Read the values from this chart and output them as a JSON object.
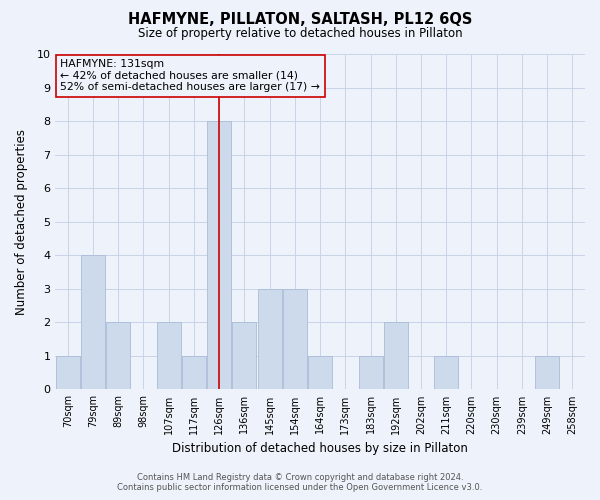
{
  "title": "HAFMYNE, PILLATON, SALTASH, PL12 6QS",
  "subtitle": "Size of property relative to detached houses in Pillaton",
  "xlabel": "Distribution of detached houses by size in Pillaton",
  "ylabel": "Number of detached properties",
  "footer_line1": "Contains HM Land Registry data © Crown copyright and database right 2024.",
  "footer_line2": "Contains public sector information licensed under the Open Government Licence v3.0.",
  "categories": [
    "70sqm",
    "79sqm",
    "89sqm",
    "98sqm",
    "107sqm",
    "117sqm",
    "126sqm",
    "136sqm",
    "145sqm",
    "154sqm",
    "164sqm",
    "173sqm",
    "183sqm",
    "192sqm",
    "202sqm",
    "211sqm",
    "220sqm",
    "230sqm",
    "239sqm",
    "249sqm",
    "258sqm"
  ],
  "values": [
    1,
    4,
    2,
    0,
    2,
    1,
    8,
    2,
    3,
    3,
    1,
    0,
    1,
    2,
    0,
    1,
    0,
    0,
    0,
    1,
    0
  ],
  "bar_color": "#ccdaec",
  "bar_edge_color": "#aabcd8",
  "highlight_index": 6,
  "highlight_line_color": "#cc0000",
  "annotation_title": "HAFMYNE: 131sqm",
  "annotation_line1": "← 42% of detached houses are smaller (14)",
  "annotation_line2": "52% of semi-detached houses are larger (17) →",
  "annotation_box_edge": "#cc0000",
  "ylim": [
    0,
    10
  ],
  "yticks": [
    0,
    1,
    2,
    3,
    4,
    5,
    6,
    7,
    8,
    9,
    10
  ],
  "grid_color": "#c8d4e8",
  "background_color": "#eef2fa"
}
